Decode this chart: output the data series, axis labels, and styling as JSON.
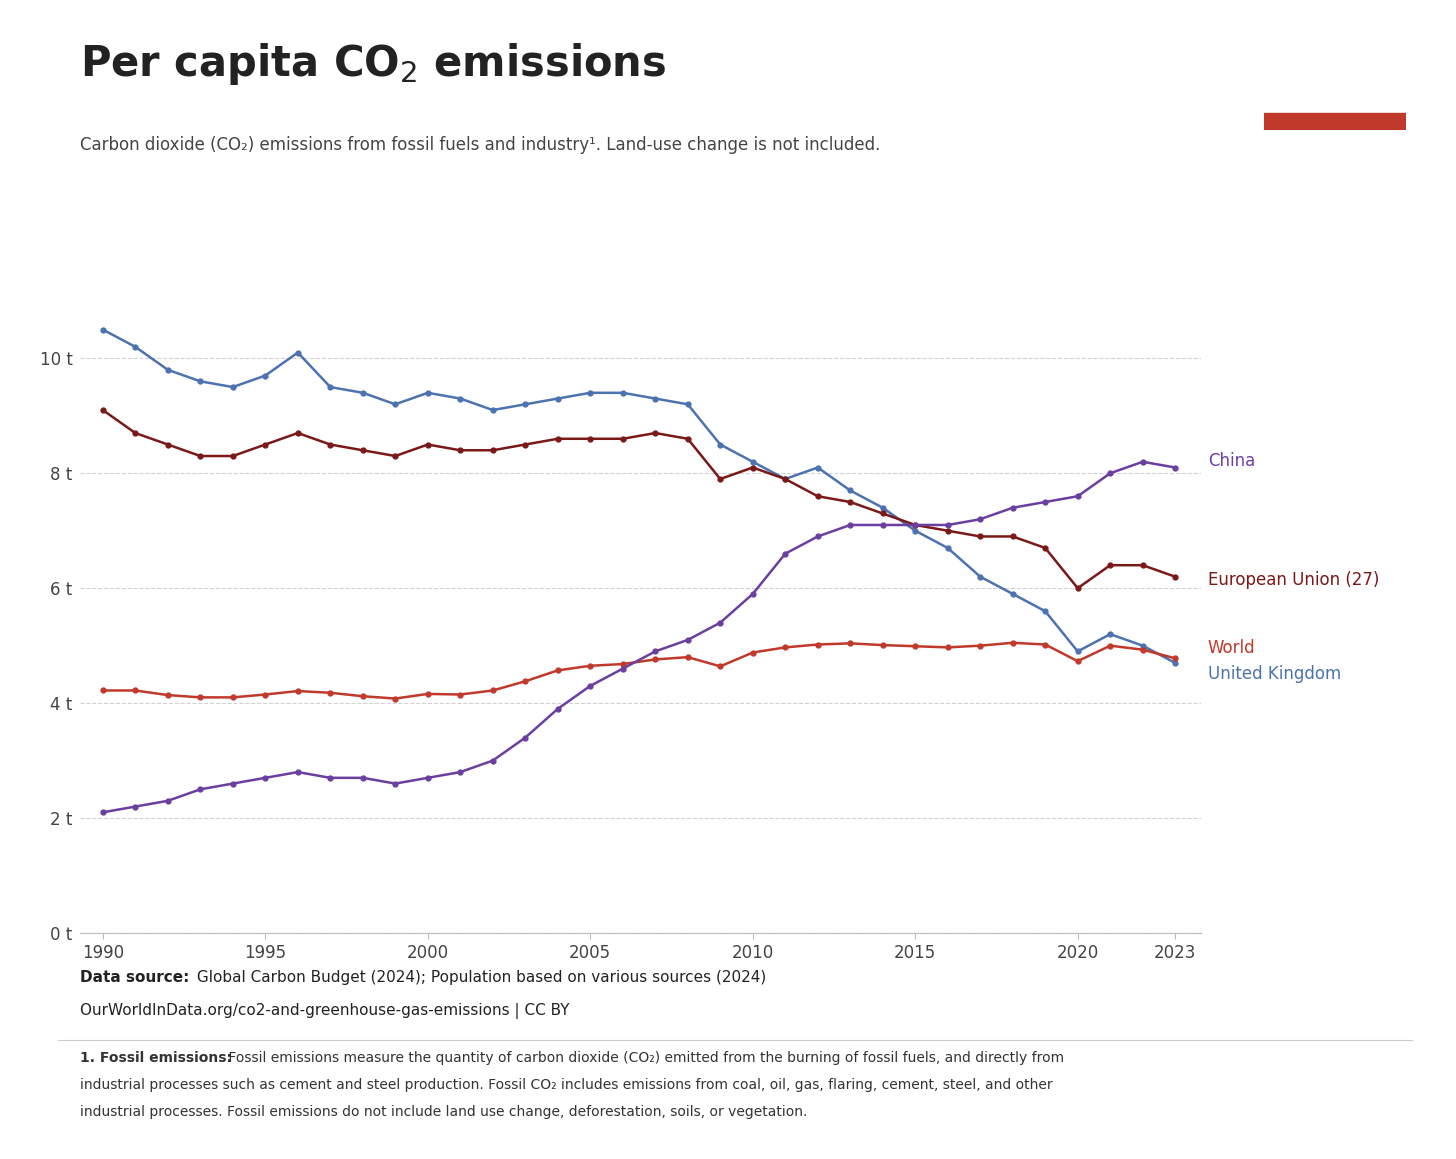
{
  "title_parts": [
    "Per capita CO",
    "2",
    " emissions"
  ],
  "subtitle": "Carbon dioxide (CO₂) emissions from fossil fuels and industry¹. Land-use change is not included.",
  "datasource_bold": "Data source:",
  "datasource_rest": " Global Carbon Budget (2024); Population based on various sources (2024)",
  "datasource_line2": "OurWorldInData.org/co2-and-greenhouse-gas-emissions | CC BY",
  "footnote_bold": "1. Fossil emissions:",
  "footnote_rest": " Fossil emissions measure the quantity of carbon dioxide (CO₂) emitted from the burning of fossil fuels, and directly from\nindustrial processes such as cement and steel production. Fossil CO₂ includes emissions from coal, oil, gas, flaring, cement, steel, and other\nindustrial processes. Fossil emissions do not include land use change, deforestation, soils, or vegetation.",
  "years": [
    1990,
    1991,
    1992,
    1993,
    1994,
    1995,
    1996,
    1997,
    1998,
    1999,
    2000,
    2001,
    2002,
    2003,
    2004,
    2005,
    2006,
    2007,
    2008,
    2009,
    2010,
    2011,
    2012,
    2013,
    2014,
    2015,
    2016,
    2017,
    2018,
    2019,
    2020,
    2021,
    2022,
    2023
  ],
  "uk": [
    10.5,
    10.2,
    9.8,
    9.6,
    9.5,
    9.7,
    10.1,
    9.5,
    9.4,
    9.2,
    9.4,
    9.3,
    9.1,
    9.2,
    9.3,
    9.4,
    9.4,
    9.3,
    9.2,
    8.5,
    8.2,
    7.9,
    8.1,
    7.7,
    7.4,
    7.0,
    6.7,
    6.2,
    5.9,
    5.6,
    4.9,
    5.2,
    5.0,
    4.7
  ],
  "eu27": [
    9.1,
    8.7,
    8.5,
    8.3,
    8.3,
    8.5,
    8.7,
    8.5,
    8.4,
    8.3,
    8.5,
    8.4,
    8.4,
    8.5,
    8.6,
    8.6,
    8.6,
    8.7,
    8.6,
    7.9,
    8.1,
    7.9,
    7.6,
    7.5,
    7.3,
    7.1,
    7.0,
    6.9,
    6.9,
    6.7,
    6.0,
    6.4,
    6.4,
    6.2
  ],
  "world": [
    4.22,
    4.22,
    4.14,
    4.1,
    4.1,
    4.15,
    4.21,
    4.18,
    4.12,
    4.08,
    4.16,
    4.15,
    4.22,
    4.38,
    4.57,
    4.65,
    4.68,
    4.76,
    4.8,
    4.64,
    4.88,
    4.97,
    5.02,
    5.04,
    5.01,
    4.99,
    4.97,
    5.0,
    5.05,
    5.02,
    4.73,
    5.0,
    4.93,
    4.78
  ],
  "china": [
    2.1,
    2.2,
    2.3,
    2.5,
    2.6,
    2.7,
    2.8,
    2.7,
    2.7,
    2.6,
    2.7,
    2.8,
    3.0,
    3.4,
    3.9,
    4.3,
    4.6,
    4.9,
    5.1,
    5.4,
    5.9,
    6.6,
    6.9,
    7.1,
    7.1,
    7.1,
    7.1,
    7.2,
    7.4,
    7.5,
    7.6,
    8.0,
    8.2,
    8.1
  ],
  "uk_color": "#4C72B0",
  "eu27_color": "#7B1818",
  "world_color": "#C0392B",
  "china_color": "#6B3FA0",
  "background_color": "#ffffff",
  "grid_color": "#cccccc",
  "ylim": [
    0,
    12
  ],
  "yticks": [
    0,
    2,
    4,
    6,
    8,
    10
  ],
  "ytick_labels": [
    "0 t",
    "2 t",
    "4 t",
    "6 t",
    "8 t",
    "10 t"
  ],
  "xticks": [
    1990,
    1995,
    2000,
    2005,
    2010,
    2015,
    2020,
    2023
  ],
  "logo_bg": "#1a3355",
  "logo_red": "#c0392b",
  "label_china": "China",
  "label_eu": "European Union (27)",
  "label_world": "World",
  "label_uk": "United Kingdom"
}
